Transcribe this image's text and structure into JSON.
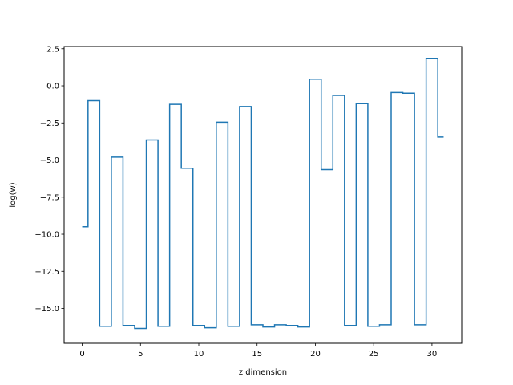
{
  "chart_data": {
    "type": "line",
    "drawstyle": "steps-mid",
    "title": "",
    "xlabel": "z dimension",
    "ylabel": "log(w)",
    "xlim": [
      -1.55,
      32.55
    ],
    "ylim": [
      -17.35,
      2.65
    ],
    "xticks": [
      0,
      5,
      10,
      15,
      20,
      25,
      30
    ],
    "xtick_labels": [
      "0",
      "5",
      "10",
      "15",
      "20",
      "25",
      "30"
    ],
    "yticks": [
      2.5,
      0.0,
      -2.5,
      -5.0,
      -7.5,
      -10.0,
      -12.5,
      -15.0
    ],
    "ytick_labels": [
      "2.5",
      "0.0",
      "−2.5",
      "−5.0",
      "−7.5",
      "−10.0",
      "−12.5",
      "−15.0"
    ],
    "grid": false,
    "series": [
      {
        "color": "#1f77b4",
        "x": [
          0,
          1,
          2,
          3,
          4,
          5,
          6,
          7,
          8,
          9,
          10,
          11,
          12,
          13,
          14,
          15,
          16,
          17,
          18,
          19,
          20,
          21,
          22,
          23,
          24,
          25,
          26,
          27,
          28,
          29,
          30,
          31
        ],
        "y": [
          -9.5,
          -1.0,
          -16.2,
          -4.8,
          -16.15,
          -16.35,
          -3.65,
          -16.2,
          -1.25,
          -5.55,
          -16.15,
          -16.3,
          -2.45,
          -16.2,
          -1.4,
          -16.1,
          -16.25,
          -16.1,
          -16.15,
          -16.25,
          0.45,
          -5.65,
          -0.65,
          -16.15,
          -1.2,
          -16.2,
          -16.1,
          -0.45,
          -0.5,
          -16.1,
          1.85,
          -3.45
        ]
      }
    ]
  }
}
